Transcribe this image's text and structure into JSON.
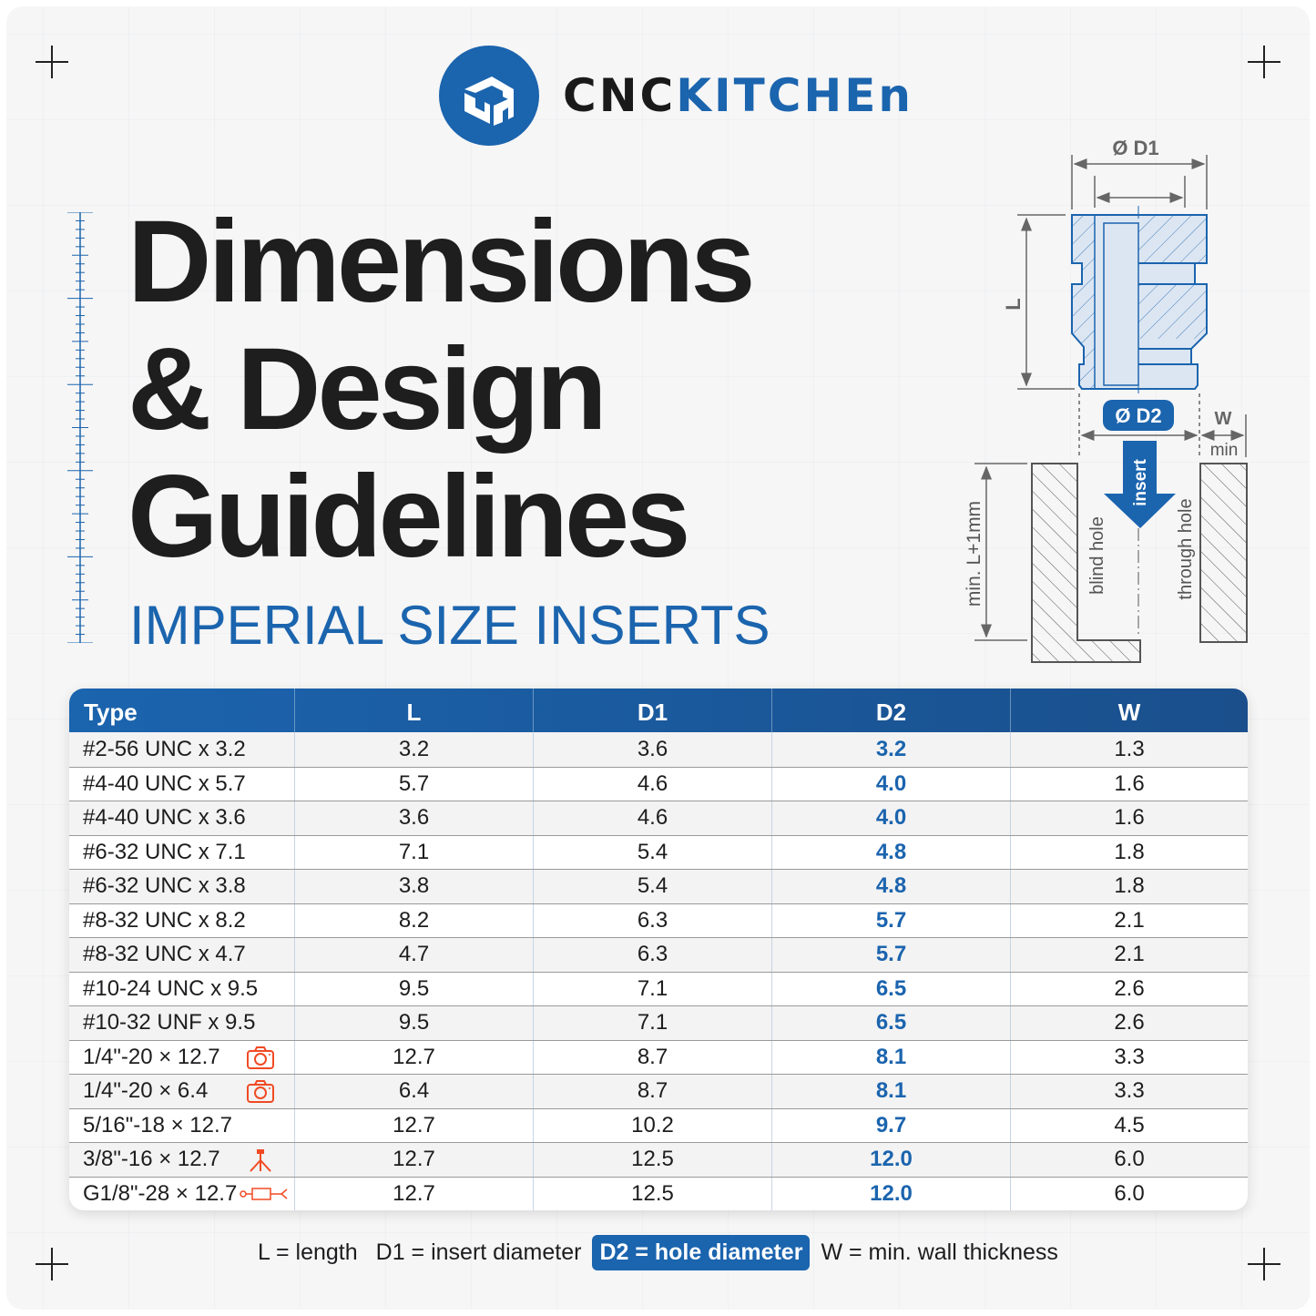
{
  "brand": {
    "name_part1": "CNC",
    "name_part2": "KITCHEn",
    "logo_color": "#1b64ae"
  },
  "title": {
    "line1": "Dimensions",
    "line2": "& Design",
    "line3": "Guidelines"
  },
  "subtitle": "IMPERIAL SIZE INSERTS",
  "diagram": {
    "d1_label": "Ø D1",
    "d2_label": "Ø D2",
    "l_label": "L",
    "w_label": "W",
    "w_sub": "min",
    "depth_label": "min. L+1mm",
    "arrow_label": "insert",
    "blind_label": "blind hole",
    "through_label": "through hole"
  },
  "table": {
    "headers": [
      "Type",
      "L",
      "D1",
      "D2",
      "W"
    ],
    "rows": [
      {
        "type": "#2-56 UNC x 3.2",
        "L": "3.2",
        "D1": "3.6",
        "D2": "3.2",
        "W": "1.3",
        "icon": ""
      },
      {
        "type": "#4-40 UNC x 5.7",
        "L": "5.7",
        "D1": "4.6",
        "D2": "4.0",
        "W": "1.6",
        "icon": ""
      },
      {
        "type": "#4-40 UNC x 3.6",
        "L": "3.6",
        "D1": "4.6",
        "D2": "4.0",
        "W": "1.6",
        "icon": ""
      },
      {
        "type": "#6-32 UNC x 7.1",
        "L": "7.1",
        "D1": "5.4",
        "D2": "4.8",
        "W": "1.8",
        "icon": ""
      },
      {
        "type": "#6-32 UNC x 3.8",
        "L": "3.8",
        "D1": "5.4",
        "D2": "4.8",
        "W": "1.8",
        "icon": ""
      },
      {
        "type": "#8-32 UNC x 8.2",
        "L": "8.2",
        "D1": "6.3",
        "D2": "5.7",
        "W": "2.1",
        "icon": ""
      },
      {
        "type": "#8-32 UNC x 4.7",
        "L": "4.7",
        "D1": "6.3",
        "D2": "5.7",
        "W": "2.1",
        "icon": ""
      },
      {
        "type": "#10-24 UNC x 9.5",
        "L": "9.5",
        "D1": "7.1",
        "D2": "6.5",
        "W": "2.6",
        "icon": ""
      },
      {
        "type": "#10-32 UNF x 9.5",
        "L": "9.5",
        "D1": "7.1",
        "D2": "6.5",
        "W": "2.6",
        "icon": ""
      },
      {
        "type": "1/4\"-20 × 12.7",
        "L": "12.7",
        "D1": "8.7",
        "D2": "8.1",
        "W": "3.3",
        "icon": "camera-icon"
      },
      {
        "type": "1/4\"-20 × 6.4",
        "L": "6.4",
        "D1": "8.7",
        "D2": "8.1",
        "W": "3.3",
        "icon": "camera-icon"
      },
      {
        "type": "5/16\"-18 × 12.7",
        "L": "12.7",
        "D1": "10.2",
        "D2": "9.7",
        "W": "4.5",
        "icon": ""
      },
      {
        "type": "3/8\"-16 × 12.7",
        "L": "12.7",
        "D1": "12.5",
        "D2": "12.0",
        "W": "6.0",
        "icon": "tripod-icon"
      },
      {
        "type": "G1/8\"-28 × 12.7",
        "L": "12.7",
        "D1": "12.5",
        "D2": "12.0",
        "W": "6.0",
        "icon": "valve-fitting-icon"
      }
    ]
  },
  "legend": {
    "l": "L = length",
    "d1": "D1 = insert diameter",
    "d2": "D2 = hole diameter",
    "w": "W = min. wall thickness"
  },
  "colors": {
    "accent": "#1b64ae",
    "icon": "#f04a23",
    "insert_fill": "#dce6f2"
  }
}
